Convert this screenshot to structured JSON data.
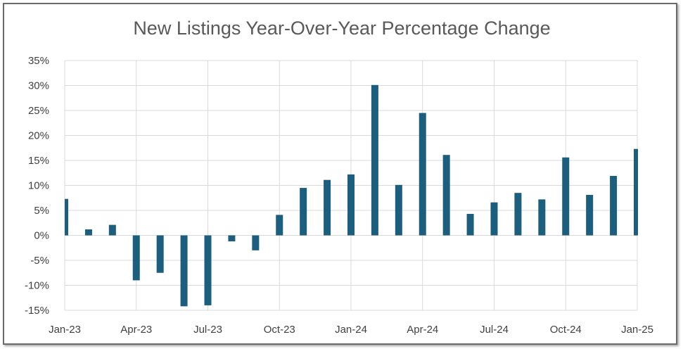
{
  "chart_data": {
    "type": "bar",
    "title": "New Listings Year-Over-Year Percentage Change",
    "xlabel": "",
    "ylabel": "",
    "categories": [
      "Jan-23",
      "Feb-23",
      "Mar-23",
      "Apr-23",
      "May-23",
      "Jun-23",
      "Jul-23",
      "Aug-23",
      "Sep-23",
      "Oct-23",
      "Nov-23",
      "Dec-23",
      "Jan-24",
      "Feb-24",
      "Mar-24",
      "Apr-24",
      "May-24",
      "Jun-24",
      "Jul-24",
      "Aug-24",
      "Sep-24",
      "Oct-24",
      "Nov-24",
      "Dec-24",
      "Jan-25"
    ],
    "values": [
      7.3,
      1.2,
      2.1,
      -9.0,
      -7.5,
      -14.2,
      -14.0,
      -1.2,
      -3.0,
      4.1,
      9.5,
      11.1,
      12.2,
      30.1,
      10.1,
      24.5,
      16.1,
      4.3,
      6.6,
      8.5,
      7.2,
      15.6,
      8.1,
      11.9,
      17.3
    ],
    "ylim": [
      -15,
      35
    ],
    "yticks": [
      "-15%",
      "-10%",
      "-5%",
      "0%",
      "5%",
      "10%",
      "15%",
      "20%",
      "25%",
      "30%",
      "35%"
    ],
    "ytick_values": [
      -15,
      -10,
      -5,
      0,
      5,
      10,
      15,
      20,
      25,
      30,
      35
    ],
    "xtick_labels": [
      "Jan-23",
      "Apr-23",
      "Jul-23",
      "Oct-23",
      "Jan-24",
      "Apr-24",
      "Jul-24",
      "Oct-24",
      "Jan-25"
    ],
    "xtick_indices": [
      0,
      3,
      6,
      9,
      12,
      15,
      18,
      21,
      24
    ],
    "grid": true,
    "legend": "none",
    "bar_color": "#1b5e7e",
    "grid_color": "#d9d9d9"
  }
}
